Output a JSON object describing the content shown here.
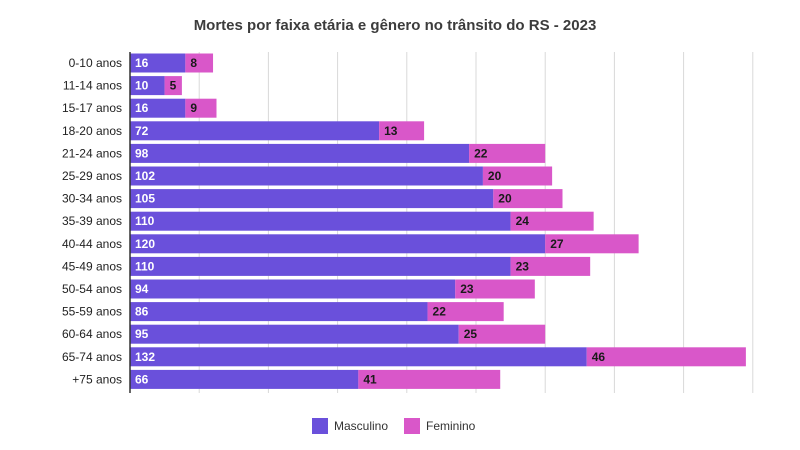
{
  "chart_data": {
    "type": "bar",
    "orientation": "horizontal",
    "stacked": true,
    "title": "Mortes por faixa etária e gênero no trânsito do RS - 2023",
    "xlabel": "",
    "ylabel": "",
    "xlim": [
      0,
      180
    ],
    "grid": true,
    "legend_position": "bottom",
    "categories": [
      "0-10 anos",
      "11-14 anos",
      "15-17 anos",
      "18-20 anos",
      "21-24 anos",
      "25-29 anos",
      "30-34 anos",
      "35-39 anos",
      "40-44 anos",
      "45-49 anos",
      "50-54 anos",
      "55-59 anos",
      "60-64 anos",
      "65-74 anos",
      "+75 anos"
    ],
    "series": [
      {
        "name": "Masculino",
        "color": "#6a50db",
        "values": [
          16,
          10,
          16,
          72,
          98,
          102,
          105,
          110,
          120,
          110,
          94,
          86,
          95,
          132,
          66
        ]
      },
      {
        "name": "Feminino",
        "color": "#d957c9",
        "values": [
          8,
          5,
          9,
          13,
          22,
          20,
          20,
          24,
          27,
          23,
          23,
          22,
          25,
          46,
          41
        ]
      }
    ]
  }
}
